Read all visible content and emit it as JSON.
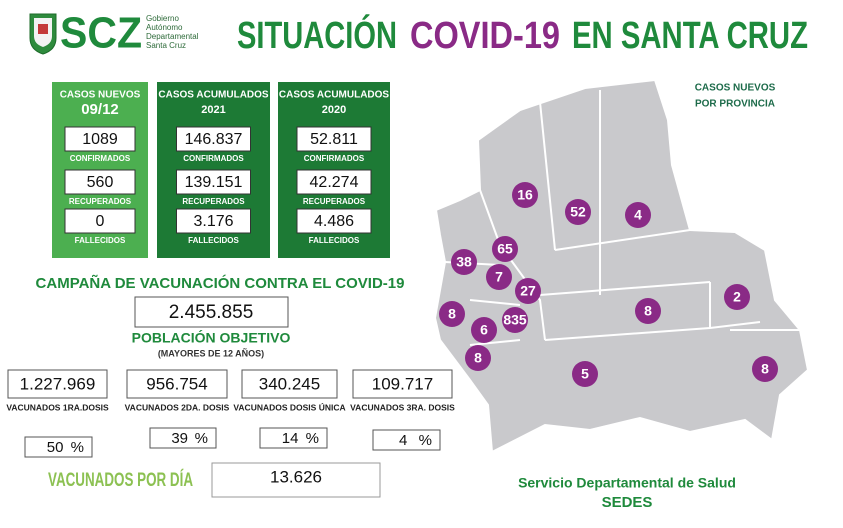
{
  "header": {
    "logo_text": "SCZ",
    "logo_lines": [
      "Gobierno",
      "Autónomo",
      "Departamental",
      "Santa Cruz"
    ],
    "title_parts": [
      "SITUACIÓN",
      "COVID-19",
      "EN SANTA CRUZ"
    ]
  },
  "cards": [
    {
      "title_lines": [
        "CASOS NUEVOS",
        "09/12"
      ],
      "items": [
        {
          "value": "1089",
          "label": "CONFIRMADOS"
        },
        {
          "value": "560",
          "label": "RECUPERADOS"
        },
        {
          "value": "0",
          "label": "FALLECIDOS"
        }
      ]
    },
    {
      "title_lines": [
        "CASOS ACUMULADOS",
        "2021"
      ],
      "items": [
        {
          "value": "146.837",
          "label": "CONFIRMADOS"
        },
        {
          "value": "139.151",
          "label": "RECUPERADOS"
        },
        {
          "value": "3.176",
          "label": "FALLECIDOS"
        }
      ]
    },
    {
      "title_lines": [
        "CASOS ACUMULADOS",
        "2020"
      ],
      "items": [
        {
          "value": "52.811",
          "label": "CONFIRMADOS"
        },
        {
          "value": "42.274",
          "label": "RECUPERADOS"
        },
        {
          "value": "4.486",
          "label": "FALLECIDOS"
        }
      ]
    }
  ],
  "vaccination": {
    "title": "CAMPAÑA DE VACUNACIÓN CONTRA EL COVID-19",
    "target": "2.455.855",
    "target_label": "POBLACIÓN OBJETIVO",
    "target_note": "(MAYORES DE 12 AÑOS)",
    "doses": [
      {
        "value": "1.227.969",
        "label": "VACUNADOS 1RA.DOSIS",
        "percent": "50",
        "percent_sign": "%"
      },
      {
        "value": "956.754",
        "label": "VACUNADOS 2DA. DOSIS",
        "percent": "39",
        "percent_sign": "%"
      },
      {
        "value": "340.245",
        "label": "VACUNADOS DOSIS ÚNICA",
        "percent": "14",
        "percent_sign": "%"
      },
      {
        "value": "109.717",
        "label": "VACUNADOS 3RA. DOSIS",
        "percent": "4",
        "percent_sign": "%"
      }
    ],
    "daily_label": "VACUNADOS POR DÍA",
    "daily_value": "13.626"
  },
  "map": {
    "title_lines": [
      "CASOS NUEVOS",
      "POR PROVINCIA"
    ],
    "provinces": [
      "16",
      "52",
      "4",
      "65",
      "38",
      "7",
      "27",
      "8",
      "6",
      "835",
      "8",
      "2",
      "8",
      "5",
      "8"
    ]
  },
  "footer": {
    "org": "Servicio Departamental de Salud",
    "acronym": "SEDES"
  }
}
